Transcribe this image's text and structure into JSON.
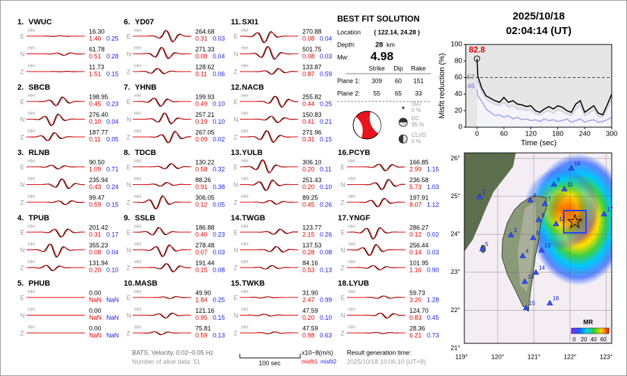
{
  "header": {
    "date": "2025/10/18",
    "time": "02:04:14  (UT)"
  },
  "stations": [
    {
      "number": "1.",
      "name": "VWUC",
      "rows": [
        [
          "E",
          "HH",
          "16.30",
          "1.40",
          "0.25"
        ],
        [
          "N",
          "HH",
          "61.78",
          "0.51",
          "0.28"
        ],
        [
          "Z",
          "HH",
          "11.73",
          "1.51",
          "0.15"
        ]
      ]
    },
    {
      "number": "2.",
      "name": "SBCB",
      "rows": [
        [
          "E",
          "HH",
          "198.95",
          "0.45",
          "0.23"
        ],
        [
          "N",
          "HH",
          "276.40",
          "0.10",
          "0.04"
        ],
        [
          "Z",
          "HH",
          "187.77",
          "0.11",
          "0.05"
        ]
      ]
    },
    {
      "number": "3.",
      "name": "RLNB",
      "rows": [
        [
          "E",
          "HH",
          "90.50",
          "1.09",
          "0.71"
        ],
        [
          "N",
          "HH",
          "235.94",
          "0.43",
          "0.24"
        ],
        [
          "Z",
          "HH",
          "99.47",
          "0.59",
          "0.15"
        ]
      ]
    },
    {
      "number": "4.",
      "name": "TPUB",
      "rows": [
        [
          "E",
          "HH",
          "201.42",
          "0.31",
          "0.17"
        ],
        [
          "N",
          "HH",
          "355.23",
          "0.08",
          "0.04"
        ],
        [
          "Z",
          "HH",
          "131.94",
          "0.20",
          "0.10"
        ]
      ]
    },
    {
      "number": "5.",
      "name": "PHUB",
      "rows": [
        [
          "E",
          "HH",
          "0.00",
          "NaN",
          "NaN"
        ],
        [
          "N",
          "HH",
          "0.00",
          "NaN",
          "NaN"
        ],
        [
          "Z",
          "HH",
          "0.00",
          "NaN",
          "NaN"
        ]
      ]
    },
    {
      "number": "6.",
      "name": "YD07",
      "rows": [
        [
          "E",
          "HH",
          "264.68",
          "0.31",
          "0.03"
        ],
        [
          "N",
          "HH",
          "271.33",
          "0.08",
          "0.04"
        ],
        [
          "Z",
          "HH",
          "128.62",
          "0.11",
          "0.06"
        ]
      ]
    },
    {
      "number": "7.",
      "name": "YHNB",
      "rows": [
        [
          "E",
          "HH",
          "199.93",
          "0.49",
          "0.10"
        ],
        [
          "N",
          "HH",
          "257.21",
          "0.19",
          "0.10"
        ],
        [
          "Z",
          "HH",
          "267.05",
          "0.09",
          "0.02"
        ]
      ]
    },
    {
      "number": "8.",
      "name": "TDCB",
      "rows": [
        [
          "E",
          "HH",
          "130.22",
          "0.58",
          "0.32"
        ],
        [
          "N",
          "HH",
          "88.26",
          "0.91",
          "0.38"
        ],
        [
          "Z",
          "HH",
          "306.05",
          "0.12",
          "0.05"
        ]
      ]
    },
    {
      "number": "9.",
      "name": "SSLB",
      "rows": [
        [
          "E",
          "HH",
          "186.88",
          "0.40",
          "0.23"
        ],
        [
          "N",
          "HH",
          "278.48",
          "0.07",
          "0.03"
        ],
        [
          "Z",
          "HH",
          "191.44",
          "0.15",
          "0.08"
        ]
      ]
    },
    {
      "number": "10.",
      "name": "MASB",
      "rows": [
        [
          "E",
          "HH",
          "49.90",
          "1.84",
          "0.25"
        ],
        [
          "N",
          "HH",
          "121.16",
          "0.95",
          "0.15"
        ],
        [
          "Z",
          "HH",
          "75.81",
          "0.59",
          "0.13"
        ]
      ]
    },
    {
      "number": "11.",
      "name": "SXI1",
      "rows": [
        [
          "E",
          "HH",
          "270.88",
          "0.08",
          "0.04"
        ],
        [
          "N",
          "HH",
          "501.75",
          "0.08",
          "0.03"
        ],
        [
          "Z",
          "HH",
          "133.87",
          "0.87",
          "0.59"
        ]
      ]
    },
    {
      "number": "12.",
      "name": "NACB",
      "rows": [
        [
          "E",
          "HH",
          "255.82",
          "0.44",
          "0.25"
        ],
        [
          "N",
          "HH",
          "150.83",
          "0.41",
          "0.21"
        ],
        [
          "Z",
          "HH",
          "271.96",
          "0.31",
          "0.15"
        ]
      ]
    },
    {
      "number": "13.",
      "name": "YULB",
      "rows": [
        [
          "E",
          "HH",
          "306.10",
          "0.20",
          "0.11"
        ],
        [
          "N",
          "HH",
          "251.43",
          "0.20",
          "0.10"
        ],
        [
          "Z",
          "HH",
          "89.25",
          "0.45",
          "0.26"
        ]
      ]
    },
    {
      "number": "14.",
      "name": "TWGB",
      "rows": [
        [
          "E",
          "HH",
          "123.77",
          "2.15",
          "0.26"
        ],
        [
          "N",
          "HH",
          "137.53",
          "0.28",
          "0.08"
        ],
        [
          "Z",
          "HH",
          "84.16",
          "0.53",
          "0.13"
        ]
      ]
    },
    {
      "number": "15.",
      "name": "TWKB",
      "rows": [
        [
          "E",
          "HH",
          "31.90",
          "2.47",
          "0.99"
        ],
        [
          "N",
          "HH",
          "47.59",
          "0.20",
          "0.10"
        ],
        [
          "Z",
          "HH",
          "47.59",
          "0.98",
          "0.63"
        ]
      ]
    },
    {
      "number": "16.",
      "name": "PCYB",
      "rows": [
        [
          "E",
          "HH",
          "166.85",
          "2.99",
          "1.15"
        ],
        [
          "N",
          "HH",
          "236.58",
          "5.73",
          "1.03"
        ],
        [
          "Z",
          "HH",
          "197.91",
          "8.07",
          "1.12"
        ]
      ]
    },
    {
      "number": "17.",
      "name": "YNGF",
      "rows": [
        [
          "E",
          "HH",
          "286.27",
          "0.12",
          "0.02"
        ],
        [
          "N",
          "HH",
          "256.44",
          "0.14",
          "0.03"
        ],
        [
          "Z",
          "HH",
          "101.95",
          "1.16",
          "0.90"
        ]
      ]
    },
    {
      "number": "18.",
      "name": "LYUB",
      "rows": [
        [
          "E",
          "HH",
          "59.73",
          "3.20",
          "1.28"
        ],
        [
          "N",
          "HH",
          "124.70",
          "0.83",
          "0.45"
        ],
        [
          "Z",
          "HH",
          "28.36",
          "6.21",
          "0.73"
        ]
      ]
    }
  ],
  "solution": {
    "title": "BEST FIT SOLUTION",
    "location_label": "Location",
    "location": "( 122.14, 24.28 )",
    "depth_label": "Depth:",
    "depth": "28",
    "depth_unit": "km",
    "mw_label": "Mw:",
    "mw": "4.98",
    "columns": [
      "Strike",
      "Dip",
      "Rake"
    ],
    "planes": [
      [
        "Plane 1:",
        "309",
        "60",
        "151"
      ],
      [
        "Plane 2:",
        "55",
        "65",
        "33"
      ]
    ],
    "components": [
      [
        "ISO",
        "0 %"
      ],
      [
        "DC",
        "95 %"
      ],
      [
        "CLVD",
        "5 %"
      ]
    ]
  },
  "footer": {
    "source": "BATS, Velocity, 0.02−0.05 Hz",
    "alive": "Number of alive data: 51",
    "scale": "100 sec",
    "unit": "x10−8(m/s)",
    "misfit1": "misfit1",
    "misfit2": "misfit2",
    "gen_label": "Result generation time:",
    "gen_time": "2025/10/18 10:06:10 (UT+8)"
  },
  "map": {
    "lon_ticks": [
      "119°",
      "120°",
      "121°",
      "122°",
      "123°"
    ],
    "lat_ticks": [
      "26°",
      "25°",
      "24°",
      "23°",
      "22°",
      "21°"
    ],
    "station_labels": [
      "1",
      "2",
      "3",
      "4",
      "5",
      "6",
      "7",
      "8",
      "9",
      "10",
      "11",
      "12",
      "13",
      "14",
      "15",
      "16",
      "17",
      "18"
    ],
    "colorbar_title": "MR",
    "colorbar_ticks": [
      0,
      20,
      40,
      60
    ]
  },
  "chart_data": {
    "type": "line",
    "ylabel": "Misfit reduction (%)",
    "xlabel": "Time (sec)",
    "x": [
      0,
      2,
      10,
      20,
      30,
      40,
      50,
      60,
      70,
      80,
      90,
      100,
      110,
      120,
      130,
      140,
      150,
      160,
      170,
      180,
      190,
      200,
      210,
      220,
      230,
      240,
      250,
      260,
      270,
      280,
      290,
      300
    ],
    "series": [
      {
        "color": "#c8c8e0",
        "values": [
          57,
          52,
          44,
          34,
          30,
          28,
          26,
          30,
          24,
          26,
          22,
          22,
          20,
          21,
          16,
          15,
          18,
          20,
          17,
          21,
          19,
          16,
          14,
          22,
          26,
          14,
          17,
          21,
          13,
          12,
          22,
          34
        ]
      },
      {
        "color": "#9a9af0",
        "values": [
          46,
          38,
          32,
          22,
          18,
          14,
          15,
          12,
          14,
          10,
          12,
          9,
          10,
          8,
          9,
          7,
          10,
          8,
          9,
          7,
          8,
          10,
          6,
          8,
          10,
          6,
          8,
          9,
          6,
          7,
          9,
          12
        ]
      },
      {
        "color": "#000000",
        "values": [
          82.8,
          62,
          48,
          38,
          35,
          32,
          30,
          36,
          30,
          32,
          28,
          27,
          25,
          26,
          20,
          18,
          22,
          25,
          22,
          26,
          24,
          20,
          18,
          28,
          32,
          18,
          22,
          26,
          17,
          15,
          27,
          40
        ]
      }
    ],
    "xlim": [
      -25,
      300
    ],
    "ylim": [
      0,
      100
    ],
    "xticks": [
      0,
      60,
      120,
      180,
      240,
      300
    ],
    "yticks": [
      0,
      20,
      40,
      60,
      80,
      100
    ],
    "hline": 60,
    "annotations": [
      {
        "text": "82.8",
        "x": 0,
        "y": 82.8,
        "color": "#e00000"
      },
      {
        "text": "57",
        "x": 0,
        "y": 57,
        "color": "#999999"
      },
      {
        "text": "46",
        "x": 0,
        "y": 46,
        "color": "#9a9af0"
      }
    ]
  }
}
